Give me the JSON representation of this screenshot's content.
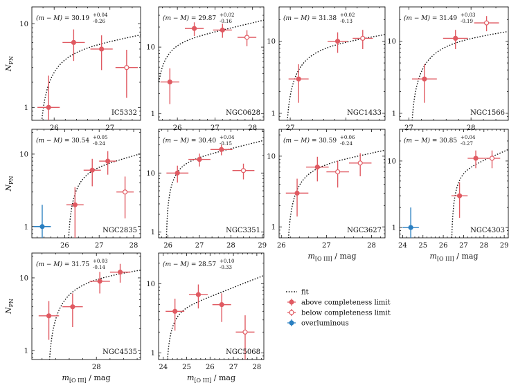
{
  "figure": {
    "x_axis_label": "m[O III] / mag",
    "y_axis_label": "N_PN",
    "colors": {
      "above": "#e05a62",
      "below": "#e05a62",
      "overluminous": "#2a7fc1",
      "fit": "#111111"
    },
    "legend": [
      {
        "key": "fit",
        "label": "fit"
      },
      {
        "key": "above",
        "label": "above completeness limit"
      },
      {
        "key": "below",
        "label": "below completeness limit"
      },
      {
        "key": "overluminous",
        "label": "overluminous"
      }
    ]
  },
  "chart_data": [
    {
      "type": "scatter",
      "name": "IC5332",
      "title": "IC5332",
      "distance_modulus": {
        "value": "30.19",
        "upper": "+0.04",
        "lower": "-0.26"
      },
      "xlim": [
        25.6,
        27.55
      ],
      "ylim": [
        0.7,
        16
      ],
      "xticks": [
        26,
        27
      ],
      "yticks": [
        1,
        10
      ],
      "ytick_labels": [
        "1",
        "10"
      ],
      "x_label_shown": false,
      "fit": {
        "mu": 30.19
      },
      "points": [
        {
          "x": 25.9,
          "y": 1,
          "xerr": 0.2,
          "yerr_lo": 0.3,
          "yerr_hi": 1.4,
          "kind": "above"
        },
        {
          "x": 26.35,
          "y": 6,
          "xerr": 0.2,
          "yerr_lo": 2.4,
          "yerr_hi": 2.6,
          "kind": "above"
        },
        {
          "x": 26.85,
          "y": 5,
          "xerr": 0.2,
          "yerr_lo": 2.2,
          "yerr_hi": 2.3,
          "kind": "above"
        },
        {
          "x": 27.3,
          "y": 3,
          "xerr": 0.2,
          "yerr_lo": 1.7,
          "yerr_hi": 1.9,
          "kind": "below"
        }
      ]
    },
    {
      "type": "scatter",
      "name": "NGC0628",
      "title": "NGC0628",
      "distance_modulus": {
        "value": "29.87",
        "upper": "+0.02",
        "lower": "-0.16"
      },
      "xlim": [
        25.5,
        28.3
      ],
      "ylim": [
        0.8,
        40
      ],
      "xticks": [
        26,
        27,
        28
      ],
      "yticks": [
        1,
        10
      ],
      "ytick_labels": [
        "1",
        "10"
      ],
      "x_label_shown": false,
      "fit": {
        "mu": 29.87
      },
      "points": [
        {
          "x": 25.8,
          "y": 3,
          "xerr": 0.25,
          "yerr_lo": 1.6,
          "yerr_hi": 1.8,
          "kind": "above"
        },
        {
          "x": 26.45,
          "y": 19,
          "xerr": 0.25,
          "yerr_lo": 4.3,
          "yerr_hi": 4.5,
          "kind": "above"
        },
        {
          "x": 27.2,
          "y": 18,
          "xerr": 0.25,
          "yerr_lo": 4.2,
          "yerr_hi": 4.4,
          "kind": "above"
        },
        {
          "x": 27.85,
          "y": 14,
          "xerr": 0.25,
          "yerr_lo": 3.7,
          "yerr_hi": 3.9,
          "kind": "below"
        }
      ]
    },
    {
      "type": "scatter",
      "name": "NGC1433",
      "title": "NGC1433",
      "distance_modulus": {
        "value": "31.38",
        "upper": "+0.02",
        "lower": "-0.13"
      },
      "xlim": [
        26.8,
        28.7
      ],
      "ylim": [
        0.8,
        30
      ],
      "xticks": [
        27
      ],
      "yticks": [
        1,
        10
      ],
      "ytick_labels": [
        "1",
        "10"
      ],
      "x_label_shown": false,
      "fit": {
        "mu": 31.38
      },
      "points": [
        {
          "x": 27.15,
          "y": 3,
          "xerr": 0.18,
          "yerr_lo": 1.6,
          "yerr_hi": 1.8,
          "kind": "above"
        },
        {
          "x": 27.85,
          "y": 10,
          "xerr": 0.18,
          "yerr_lo": 3.1,
          "yerr_hi": 3.3,
          "kind": "above"
        },
        {
          "x": 28.3,
          "y": 11,
          "xerr": 0.18,
          "yerr_lo": 3.2,
          "yerr_hi": 3.4,
          "kind": "below"
        }
      ]
    },
    {
      "type": "scatter",
      "name": "NGC1566",
      "title": "NGC1566",
      "distance_modulus": {
        "value": "31.49",
        "upper": "+0.03",
        "lower": "-0.19"
      },
      "xlim": [
        26.85,
        28.6
      ],
      "ylim": [
        0.8,
        30
      ],
      "xticks": [
        27,
        28
      ],
      "yticks": [
        1,
        10
      ],
      "ytick_labels": [
        "1",
        "10"
      ],
      "x_label_shown": false,
      "fit": {
        "mu": 31.49
      },
      "points": [
        {
          "x": 27.25,
          "y": 3,
          "xerr": 0.2,
          "yerr_lo": 1.6,
          "yerr_hi": 1.8,
          "kind": "above"
        },
        {
          "x": 27.75,
          "y": 11,
          "xerr": 0.2,
          "yerr_lo": 3.2,
          "yerr_hi": 3.4,
          "kind": "above"
        },
        {
          "x": 28.25,
          "y": 18,
          "xerr": 0.2,
          "yerr_lo": 4.2,
          "yerr_hi": 4.4,
          "kind": "below"
        }
      ]
    },
    {
      "type": "scatter",
      "name": "NGC2835",
      "title": "NGC2835",
      "distance_modulus": {
        "value": "30.54",
        "upper": "+0.05",
        "lower": "-0.24"
      },
      "xlim": [
        25.05,
        28.2
      ],
      "ylim": [
        0.7,
        22
      ],
      "xticks": [
        26,
        27,
        28
      ],
      "yticks": [
        1,
        10
      ],
      "ytick_labels": [
        "1",
        "10"
      ],
      "x_label_shown": false,
      "fit": {
        "mu": 30.54
      },
      "points": [
        {
          "x": 25.35,
          "y": 1,
          "xerr": 0.25,
          "yerr_lo": 0.3,
          "yerr_hi": 1.0,
          "kind": "overluminous"
        },
        {
          "x": 26.3,
          "y": 2,
          "xerr": 0.25,
          "yerr_lo": 1.3,
          "yerr_hi": 1.5,
          "kind": "above"
        },
        {
          "x": 26.8,
          "y": 6,
          "xerr": 0.25,
          "yerr_lo": 2.4,
          "yerr_hi": 2.6,
          "kind": "above"
        },
        {
          "x": 27.25,
          "y": 8,
          "xerr": 0.25,
          "yerr_lo": 2.8,
          "yerr_hi": 3.0,
          "kind": "above"
        },
        {
          "x": 27.75,
          "y": 3,
          "xerr": 0.25,
          "yerr_lo": 1.7,
          "yerr_hi": 1.9,
          "kind": "below"
        }
      ]
    },
    {
      "type": "scatter",
      "name": "NGC3351",
      "title": "NGC3351",
      "distance_modulus": {
        "value": "30.40",
        "upper": "+0.04",
        "lower": "-0.15"
      },
      "xlim": [
        25.7,
        29.05
      ],
      "ylim": [
        0.8,
        55
      ],
      "xticks": [
        26,
        27,
        28,
        29
      ],
      "yticks": [
        1,
        10
      ],
      "ytick_labels": [
        "1",
        "10"
      ],
      "x_label_shown": false,
      "fit": {
        "mu": 30.4
      },
      "points": [
        {
          "x": 26.3,
          "y": 10,
          "xerr": 0.35,
          "yerr_lo": 3.1,
          "yerr_hi": 3.3,
          "kind": "above"
        },
        {
          "x": 27.0,
          "y": 17,
          "xerr": 0.35,
          "yerr_lo": 4.1,
          "yerr_hi": 4.3,
          "kind": "above"
        },
        {
          "x": 27.7,
          "y": 25,
          "xerr": 0.35,
          "yerr_lo": 5.0,
          "yerr_hi": 5.2,
          "kind": "above"
        },
        {
          "x": 28.4,
          "y": 11,
          "xerr": 0.35,
          "yerr_lo": 3.2,
          "yerr_hi": 3.4,
          "kind": "below"
        }
      ]
    },
    {
      "type": "scatter",
      "name": "NGC3627",
      "title": "NGC3627",
      "distance_modulus": {
        "value": "30.59",
        "upper": "+0.06",
        "lower": "-0.24"
      },
      "xlim": [
        25.95,
        28.3
      ],
      "ylim": [
        0.7,
        24
      ],
      "xticks": [
        26,
        27,
        28
      ],
      "yticks": [
        1,
        10
      ],
      "ytick_labels": [
        "1",
        "10"
      ],
      "x_label_shown": true,
      "fit": {
        "mu": 30.59
      },
      "points": [
        {
          "x": 26.35,
          "y": 3,
          "xerr": 0.25,
          "yerr_lo": 1.6,
          "yerr_hi": 1.8,
          "kind": "above"
        },
        {
          "x": 26.8,
          "y": 7,
          "xerr": 0.25,
          "yerr_lo": 2.6,
          "yerr_hi": 2.8,
          "kind": "above"
        },
        {
          "x": 27.25,
          "y": 6,
          "xerr": 0.25,
          "yerr_lo": 2.4,
          "yerr_hi": 2.6,
          "kind": "below"
        },
        {
          "x": 27.75,
          "y": 8,
          "xerr": 0.25,
          "yerr_lo": 2.8,
          "yerr_hi": 3.0,
          "kind": "below"
        }
      ]
    },
    {
      "type": "scatter",
      "name": "NGC4303",
      "title": "NGC4303",
      "distance_modulus": {
        "value": "30.85",
        "upper": "+0.04",
        "lower": "-0.27"
      },
      "xlim": [
        23.85,
        29.2
      ],
      "ylim": [
        0.7,
        30
      ],
      "xticks": [
        24,
        25,
        26,
        27,
        28,
        29
      ],
      "yticks": [
        1,
        10
      ],
      "ytick_labels": [
        "1",
        "10"
      ],
      "x_label_shown": true,
      "fit": {
        "mu": 30.85
      },
      "points": [
        {
          "x": 24.4,
          "y": 1,
          "xerr": 0.4,
          "yerr_lo": 0.3,
          "yerr_hi": 1.0,
          "kind": "overluminous"
        },
        {
          "x": 26.8,
          "y": 3,
          "xerr": 0.4,
          "yerr_lo": 1.6,
          "yerr_hi": 1.8,
          "kind": "above"
        },
        {
          "x": 27.6,
          "y": 11,
          "xerr": 0.4,
          "yerr_lo": 3.2,
          "yerr_hi": 3.4,
          "kind": "above"
        },
        {
          "x": 28.4,
          "y": 11,
          "xerr": 0.4,
          "yerr_lo": 3.2,
          "yerr_hi": 3.4,
          "kind": "below"
        }
      ]
    },
    {
      "type": "scatter",
      "name": "NGC4535",
      "title": "NGC4535",
      "distance_modulus": {
        "value": "31.75",
        "upper": "+0.03",
        "lower": "-0.14"
      },
      "xlim": [
        27.05,
        28.65
      ],
      "ylim": [
        0.75,
        22
      ],
      "xticks": [
        28
      ],
      "yticks": [
        1,
        10
      ],
      "ytick_labels": [
        "1",
        "10"
      ],
      "x_label_shown": true,
      "fit": {
        "mu": 31.75
      },
      "points": [
        {
          "x": 27.3,
          "y": 3,
          "xerr": 0.15,
          "yerr_lo": 1.6,
          "yerr_hi": 1.8,
          "kind": "above"
        },
        {
          "x": 27.65,
          "y": 4,
          "xerr": 0.15,
          "yerr_lo": 1.9,
          "yerr_hi": 2.1,
          "kind": "above"
        },
        {
          "x": 28.05,
          "y": 9,
          "xerr": 0.15,
          "yerr_lo": 2.9,
          "yerr_hi": 3.1,
          "kind": "above"
        },
        {
          "x": 28.35,
          "y": 12,
          "xerr": 0.15,
          "yerr_lo": 3.4,
          "yerr_hi": 3.6,
          "kind": "above"
        }
      ]
    },
    {
      "type": "scatter",
      "name": "NGC5068",
      "title": "NGC5068",
      "distance_modulus": {
        "value": "28.57",
        "upper": "+0.10",
        "lower": "-0.33"
      },
      "xlim": [
        23.8,
        28.3
      ],
      "ylim": [
        0.8,
        28
      ],
      "xticks": [
        24,
        25,
        26,
        27,
        28
      ],
      "yticks": [
        1,
        10
      ],
      "ytick_labels": [
        "1",
        "10"
      ],
      "x_label_shown": true,
      "fit": {
        "mu": 28.57
      },
      "points": [
        {
          "x": 24.5,
          "y": 4,
          "xerr": 0.4,
          "yerr_lo": 1.9,
          "yerr_hi": 2.1,
          "kind": "above"
        },
        {
          "x": 25.5,
          "y": 7,
          "xerr": 0.4,
          "yerr_lo": 2.6,
          "yerr_hi": 2.8,
          "kind": "above"
        },
        {
          "x": 26.5,
          "y": 5,
          "xerr": 0.4,
          "yerr_lo": 2.2,
          "yerr_hi": 2.3,
          "kind": "above"
        },
        {
          "x": 27.5,
          "y": 2,
          "xerr": 0.4,
          "yerr_lo": 1.3,
          "yerr_hi": 1.5,
          "kind": "below"
        }
      ]
    }
  ]
}
